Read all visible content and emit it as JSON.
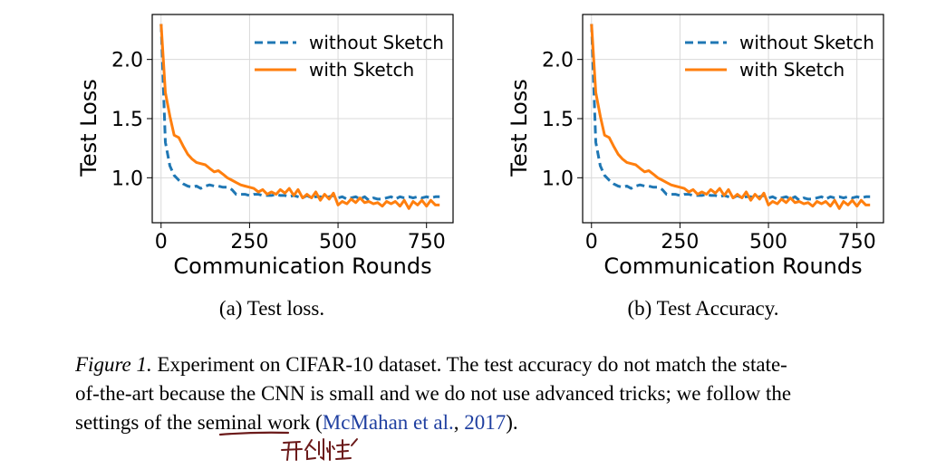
{
  "chart_data": [
    {
      "type": "line",
      "xlabel": "Communication Rounds",
      "ylabel": "Test Loss",
      "xlim": [
        -25,
        825
      ],
      "ylim": [
        0.62,
        2.38
      ],
      "xticks": [
        0,
        250,
        500,
        750
      ],
      "yticks": [
        1.0,
        1.5,
        2.0
      ],
      "xtick_labels": [
        "0",
        "250",
        "500",
        "750"
      ],
      "ytick_labels": [
        "1.0",
        "1.5",
        "2.0"
      ],
      "grid": true,
      "legend_position": "top-right",
      "subcaption": "(a)  Test loss.",
      "series": [
        {
          "name": "without Sketch",
          "color": "#1f77b4",
          "style": "dashed",
          "x": [
            0,
            12,
            25,
            37,
            50,
            62,
            75,
            87,
            100,
            112,
            125,
            137,
            150,
            162,
            175,
            187,
            200,
            212,
            225,
            237,
            250,
            262,
            275,
            287,
            300,
            312,
            325,
            337,
            350,
            362,
            375,
            387,
            400,
            412,
            425,
            437,
            450,
            462,
            475,
            487,
            500,
            512,
            525,
            537,
            550,
            562,
            575,
            587,
            600,
            612,
            625,
            637,
            650,
            662,
            675,
            687,
            700,
            712,
            725,
            737,
            750,
            762,
            775,
            787
          ],
          "y": [
            2.3,
            1.3,
            1.1,
            1.02,
            0.98,
            0.95,
            0.93,
            0.92,
            0.93,
            0.91,
            0.93,
            0.94,
            0.93,
            0.93,
            0.92,
            0.92,
            0.9,
            0.86,
            0.86,
            0.86,
            0.85,
            0.86,
            0.86,
            0.85,
            0.85,
            0.85,
            0.86,
            0.85,
            0.85,
            0.84,
            0.85,
            0.84,
            0.83,
            0.85,
            0.83,
            0.84,
            0.84,
            0.83,
            0.84,
            0.85,
            0.83,
            0.84,
            0.82,
            0.83,
            0.84,
            0.82,
            0.84,
            0.81,
            0.83,
            0.82,
            0.82,
            0.83,
            0.84,
            0.82,
            0.84,
            0.83,
            0.84,
            0.83,
            0.84,
            0.83,
            0.84,
            0.83,
            0.84,
            0.84
          ]
        },
        {
          "name": "with Sketch",
          "color": "#ff7f0e",
          "style": "solid",
          "x": [
            0,
            12,
            25,
            37,
            50,
            62,
            75,
            87,
            100,
            112,
            125,
            137,
            150,
            162,
            175,
            187,
            200,
            212,
            225,
            237,
            250,
            262,
            275,
            287,
            300,
            312,
            325,
            337,
            350,
            362,
            375,
            387,
            400,
            412,
            425,
            437,
            450,
            462,
            475,
            487,
            500,
            512,
            525,
            537,
            550,
            562,
            575,
            587,
            600,
            612,
            625,
            637,
            650,
            662,
            675,
            687,
            700,
            712,
            725,
            737,
            750,
            762,
            775,
            787
          ],
          "y": [
            2.3,
            1.72,
            1.52,
            1.36,
            1.34,
            1.27,
            1.2,
            1.16,
            1.13,
            1.12,
            1.11,
            1.08,
            1.05,
            1.06,
            1.03,
            1.0,
            0.98,
            0.96,
            0.94,
            0.93,
            0.92,
            0.91,
            0.88,
            0.9,
            0.86,
            0.88,
            0.86,
            0.9,
            0.87,
            0.91,
            0.85,
            0.9,
            0.83,
            0.86,
            0.83,
            0.88,
            0.81,
            0.86,
            0.82,
            0.87,
            0.77,
            0.8,
            0.78,
            0.82,
            0.79,
            0.83,
            0.79,
            0.8,
            0.78,
            0.79,
            0.76,
            0.8,
            0.78,
            0.8,
            0.76,
            0.81,
            0.74,
            0.8,
            0.77,
            0.81,
            0.76,
            0.81,
            0.77,
            0.77
          ]
        }
      ]
    },
    {
      "type": "line",
      "xlabel": "Communication Rounds",
      "ylabel": "Test Loss",
      "xlim": [
        -25,
        825
      ],
      "ylim": [
        0.62,
        2.38
      ],
      "xticks": [
        0,
        250,
        500,
        750
      ],
      "yticks": [
        1.0,
        1.5,
        2.0
      ],
      "xtick_labels": [
        "0",
        "250",
        "500",
        "750"
      ],
      "ytick_labels": [
        "1.0",
        "1.5",
        "2.0"
      ],
      "grid": true,
      "legend_position": "top-right",
      "subcaption": "(b)  Test Accuracy.",
      "series": [
        {
          "name": "without Sketch",
          "color": "#1f77b4",
          "style": "dashed",
          "x": [
            0,
            12,
            25,
            37,
            50,
            62,
            75,
            87,
            100,
            112,
            125,
            137,
            150,
            162,
            175,
            187,
            200,
            212,
            225,
            237,
            250,
            262,
            275,
            287,
            300,
            312,
            325,
            337,
            350,
            362,
            375,
            387,
            400,
            412,
            425,
            437,
            450,
            462,
            475,
            487,
            500,
            512,
            525,
            537,
            550,
            562,
            575,
            587,
            600,
            612,
            625,
            637,
            650,
            662,
            675,
            687,
            700,
            712,
            725,
            737,
            750,
            762,
            775,
            787
          ],
          "y": [
            2.3,
            1.3,
            1.1,
            1.02,
            0.98,
            0.95,
            0.93,
            0.92,
            0.93,
            0.91,
            0.93,
            0.94,
            0.93,
            0.93,
            0.92,
            0.92,
            0.9,
            0.86,
            0.86,
            0.86,
            0.85,
            0.86,
            0.86,
            0.85,
            0.85,
            0.85,
            0.86,
            0.85,
            0.85,
            0.84,
            0.85,
            0.84,
            0.83,
            0.85,
            0.83,
            0.84,
            0.84,
            0.83,
            0.84,
            0.85,
            0.83,
            0.84,
            0.82,
            0.83,
            0.84,
            0.82,
            0.84,
            0.81,
            0.83,
            0.82,
            0.82,
            0.83,
            0.84,
            0.82,
            0.84,
            0.83,
            0.84,
            0.83,
            0.84,
            0.83,
            0.84,
            0.83,
            0.84,
            0.84
          ]
        },
        {
          "name": "with Sketch",
          "color": "#ff7f0e",
          "style": "solid",
          "x": [
            0,
            12,
            25,
            37,
            50,
            62,
            75,
            87,
            100,
            112,
            125,
            137,
            150,
            162,
            175,
            187,
            200,
            212,
            225,
            237,
            250,
            262,
            275,
            287,
            300,
            312,
            325,
            337,
            350,
            362,
            375,
            387,
            400,
            412,
            425,
            437,
            450,
            462,
            475,
            487,
            500,
            512,
            525,
            537,
            550,
            562,
            575,
            587,
            600,
            612,
            625,
            637,
            650,
            662,
            675,
            687,
            700,
            712,
            725,
            737,
            750,
            762,
            775,
            787
          ],
          "y": [
            2.3,
            1.72,
            1.52,
            1.36,
            1.34,
            1.27,
            1.2,
            1.16,
            1.13,
            1.12,
            1.11,
            1.08,
            1.05,
            1.06,
            1.03,
            1.0,
            0.98,
            0.96,
            0.94,
            0.93,
            0.92,
            0.91,
            0.88,
            0.9,
            0.86,
            0.88,
            0.86,
            0.9,
            0.87,
            0.91,
            0.85,
            0.9,
            0.83,
            0.86,
            0.83,
            0.88,
            0.81,
            0.86,
            0.82,
            0.87,
            0.77,
            0.8,
            0.78,
            0.82,
            0.79,
            0.83,
            0.79,
            0.8,
            0.78,
            0.79,
            0.76,
            0.8,
            0.78,
            0.8,
            0.76,
            0.81,
            0.74,
            0.8,
            0.77,
            0.81,
            0.76,
            0.81,
            0.77,
            0.77
          ]
        }
      ]
    }
  ],
  "caption": {
    "figure_label": "Figure 1.",
    "line1_rest": " Experiment on CIFAR-10 dataset.  The test accuracy do not match the state-",
    "line2": "of-the-art because the CNN is small and we do not use advanced tricks; we follow the",
    "line3_before": "settings of the ",
    "line3_underlined": "seminal",
    "line3_mid": " work (",
    "line3_cite": "McMahan et al.",
    "line3_after_cite": ", ",
    "line3_year": "2017",
    "line3_end": ")."
  },
  "handwritten_note": "开创性",
  "colors": {
    "grid": "#d9d9d9",
    "annotation_ink": "#6b1a1a",
    "citation": "#1f3fa0"
  }
}
